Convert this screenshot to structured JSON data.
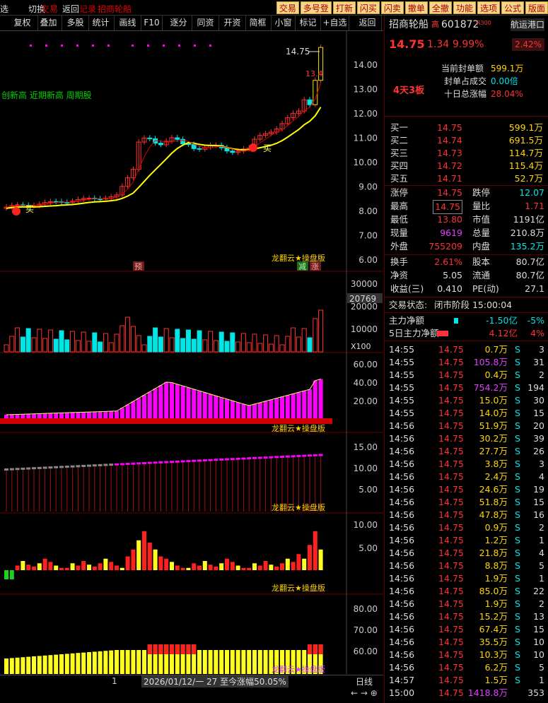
{
  "topbar": {
    "left1": "选",
    "left2": "切换",
    "left3": "返回",
    "overlay1": "交易",
    "overlay2": "记录",
    "stock_title": "招商轮船",
    "buttons": [
      "交易",
      "多号登",
      "打新",
      "闪买",
      "闪卖",
      "撤单",
      "全撤",
      "功能",
      "选项",
      "公式",
      "版面"
    ]
  },
  "toolbar": [
    "复权",
    "叠加",
    "多股",
    "统计",
    "画线",
    "F10",
    "逐分",
    "同资",
    "开资",
    "简框",
    "小窗",
    "标记",
    "+自选",
    "返回"
  ],
  "chart": {
    "price_axis": [
      "14.00",
      "13.00",
      "12.00",
      "11.00",
      "10.00",
      "9.00",
      "8.00",
      "7.00",
      "6.00"
    ],
    "high_label": "14.75",
    "close_label": "13.4",
    "legend": "创新高 近期新高 周期股",
    "buy_label": "买",
    "buy_label2": "买",
    "watermark": "龙翻云★操盘版",
    "marker_pre": "预",
    "marker_jian": "减",
    "marker_zhang": "涨",
    "vol_axis": [
      "30000",
      "20000",
      "10000"
    ],
    "vol_current": "20769",
    "vol_unit": "X100",
    "ind1_axis": [
      "60.00",
      "40.00",
      "20.00"
    ],
    "ind2_axis": [
      "15.00",
      "10.00",
      "5.00"
    ],
    "ind3_axis": [
      "10.00",
      "5.00"
    ],
    "ind4_axis": [
      "80.00",
      "70.00",
      "60.00"
    ]
  },
  "bottom": {
    "page": "1",
    "info": "2026/01/12/一 27 至今涨幅50.05%",
    "line_btn": "日线"
  },
  "quote": {
    "name": "招商轮船",
    "tag": "高",
    "code": "601872",
    "r_tag": "R300",
    "sector": "航运港口",
    "price": "14.75",
    "change": "1.34",
    "pct": "9.99%",
    "sector_pct": "2.42%",
    "board": "4天3板",
    "seal_amount_label": "当前封单额",
    "seal_amount": "599.1万",
    "seal_ratio_label": "封单占成交",
    "seal_ratio": "0.00倍",
    "ten_day_label": "十日总涨幅",
    "ten_day": "28.04%"
  },
  "bids": [
    {
      "label": "买一",
      "price": "14.75",
      "vol": "599.1万"
    },
    {
      "label": "买二",
      "price": "14.74",
      "vol": "691.5万"
    },
    {
      "label": "买三",
      "price": "14.73",
      "vol": "114.7万"
    },
    {
      "label": "买四",
      "price": "14.72",
      "vol": "115.4万"
    },
    {
      "label": "买五",
      "price": "14.71",
      "vol": "52.7万"
    }
  ],
  "stats": [
    {
      "l1": "涨停",
      "v1": "14.75",
      "l2": "跌停",
      "v2": "12.07"
    },
    {
      "l1": "最高",
      "v1": "14.75",
      "l2": "量比",
      "v2": "1.71"
    },
    {
      "l1": "最低",
      "v1": "13.80",
      "l2": "市值",
      "v2": "1191亿"
    },
    {
      "l1": "现量",
      "v1": "9619",
      "l2": "总量",
      "v2": "210.8万"
    },
    {
      "l1": "外盘",
      "v1": "755209",
      "l2": "内盘",
      "v2": "135.2万"
    }
  ],
  "stats2": [
    {
      "l1": "换手",
      "v1": "2.61%",
      "l2": "股本",
      "v2": "80.7亿"
    },
    {
      "l1": "净资",
      "v1": "5.05",
      "l2": "流通",
      "v2": "80.7亿"
    },
    {
      "l1": "收益(三)",
      "v1": "0.410",
      "l2": "PE(动)",
      "v2": "27.1"
    }
  ],
  "status": {
    "label": "交易状态:",
    "value": "闭市阶段 15:00:04"
  },
  "flow": [
    {
      "label": "主力净额",
      "amount": "-1.50亿",
      "pct": "-5%"
    },
    {
      "label": "5日主力净额",
      "amount": "4.12亿",
      "pct": "4%"
    }
  ],
  "ticks": [
    [
      "14:55",
      "14.75",
      "0.7万",
      "S",
      "3"
    ],
    [
      "14:55",
      "14.75",
      "105.8万",
      "S",
      "31"
    ],
    [
      "14:55",
      "14.75",
      "0.4万",
      "S",
      "2"
    ],
    [
      "14:55",
      "14.75",
      "754.2万",
      "S",
      "194"
    ],
    [
      "14:55",
      "14.75",
      "15.0万",
      "S",
      "30"
    ],
    [
      "14:55",
      "14.75",
      "14.0万",
      "S",
      "15"
    ],
    [
      "14:56",
      "14.75",
      "51.9万",
      "S",
      "20"
    ],
    [
      "14:56",
      "14.75",
      "30.2万",
      "S",
      "39"
    ],
    [
      "14:56",
      "14.75",
      "27.7万",
      "S",
      "26"
    ],
    [
      "14:56",
      "14.75",
      "3.8万",
      "S",
      "3"
    ],
    [
      "14:56",
      "14.75",
      "2.4万",
      "S",
      "4"
    ],
    [
      "14:56",
      "14.75",
      "24.6万",
      "S",
      "19"
    ],
    [
      "14:56",
      "14.75",
      "51.8万",
      "S",
      "15"
    ],
    [
      "14:56",
      "14.75",
      "47.8万",
      "S",
      "16"
    ],
    [
      "14:56",
      "14.75",
      "0.9万",
      "S",
      "2"
    ],
    [
      "14:56",
      "14.75",
      "1.2万",
      "S",
      "1"
    ],
    [
      "14:56",
      "14.75",
      "21.8万",
      "S",
      "4"
    ],
    [
      "14:56",
      "14.75",
      "8.8万",
      "S",
      "5"
    ],
    [
      "14:56",
      "14.75",
      "1.9万",
      "S",
      "1"
    ],
    [
      "14:56",
      "14.75",
      "85.0万",
      "S",
      "22"
    ],
    [
      "14:56",
      "14.75",
      "1.9万",
      "S",
      "2"
    ],
    [
      "14:56",
      "14.75",
      "15.2万",
      "S",
      "13"
    ],
    [
      "14:56",
      "14.75",
      "67.4万",
      "S",
      "15"
    ],
    [
      "14:56",
      "14.75",
      "35.5万",
      "S",
      "10"
    ],
    [
      "14:56",
      "14.75",
      "10.3万",
      "S",
      "10"
    ],
    [
      "14:56",
      "14.75",
      "6.2万",
      "S",
      "5"
    ],
    [
      "14:57",
      "14.75",
      "1.5万",
      "S",
      "1"
    ],
    [
      "15:00",
      "14.75",
      "1418.8万",
      "",
      "353"
    ]
  ],
  "colors": {
    "up": "#ff3232",
    "down": "#00e5e5",
    "ma": "#ffff00",
    "mag": "#ff00ff"
  }
}
